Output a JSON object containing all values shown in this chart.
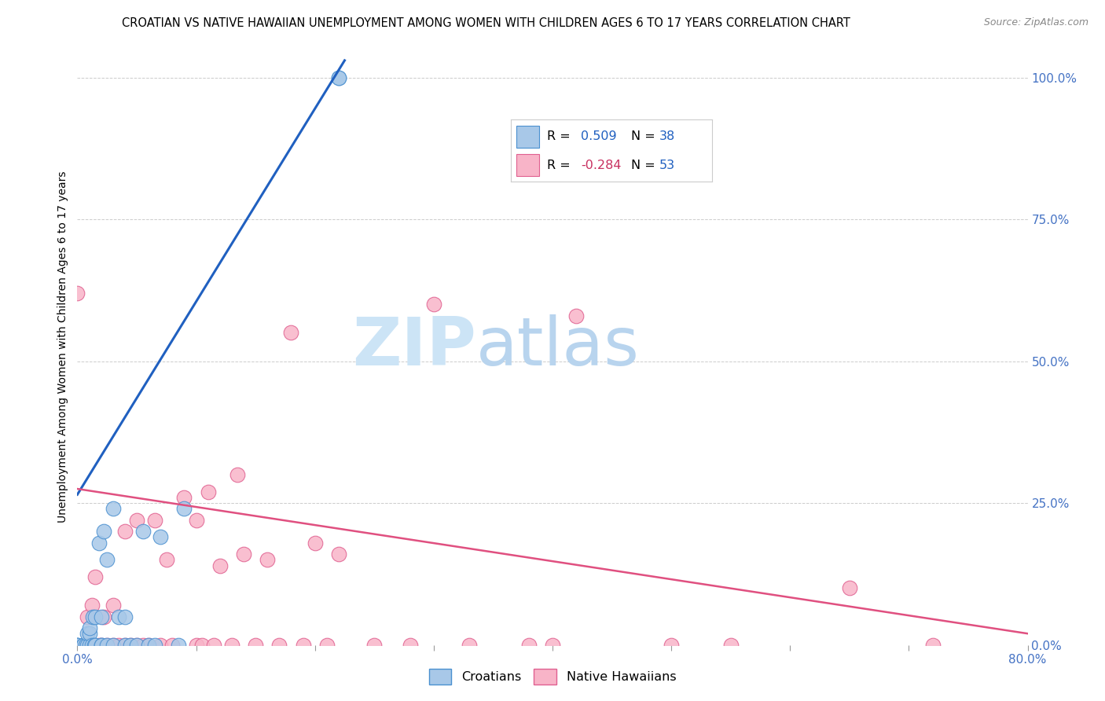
{
  "title": "CROATIAN VS NATIVE HAWAIIAN UNEMPLOYMENT AMONG WOMEN WITH CHILDREN AGES 6 TO 17 YEARS CORRELATION CHART",
  "source": "Source: ZipAtlas.com",
  "ylabel": "Unemployment Among Women with Children Ages 6 to 17 years",
  "xlim": [
    0.0,
    0.8
  ],
  "ylim": [
    0.0,
    1.05
  ],
  "xtick_positions": [
    0.0,
    0.1,
    0.2,
    0.3,
    0.4,
    0.5,
    0.6,
    0.7,
    0.8
  ],
  "xticklabels": [
    "0.0%",
    "",
    "",
    "",
    "",
    "",
    "",
    "",
    "80.0%"
  ],
  "ytick_positions": [
    0.0,
    0.25,
    0.5,
    0.75,
    1.0
  ],
  "yticklabels_right": [
    "0.0%",
    "25.0%",
    "50.0%",
    "75.0%",
    "100.0%"
  ],
  "croatian_R": "0.509",
  "croatian_N": "38",
  "hawaiian_R": "-0.284",
  "hawaiian_N": "53",
  "blue_scatter_color": "#a8c8e8",
  "blue_edge_color": "#4a90d0",
  "blue_line_color": "#2060c0",
  "pink_scatter_color": "#f8b4c8",
  "pink_edge_color": "#e06090",
  "pink_line_color": "#e05080",
  "title_fontsize": 10.5,
  "source_fontsize": 9,
  "tick_label_color": "#4472c4",
  "ylabel_fontsize": 10,
  "watermark_zip_color": "#cce4f6",
  "watermark_atlas_color": "#b8d4ee",
  "grid_color": "#cccccc",
  "legend_border_color": "#cccccc",
  "croatian_x": [
    0.0,
    0.0,
    0.0,
    0.005,
    0.005,
    0.007,
    0.008,
    0.008,
    0.01,
    0.01,
    0.01,
    0.012,
    0.013,
    0.014,
    0.015,
    0.015,
    0.018,
    0.02,
    0.02,
    0.02,
    0.022,
    0.025,
    0.025,
    0.03,
    0.03,
    0.035,
    0.04,
    0.04,
    0.045,
    0.05,
    0.055,
    0.06,
    0.065,
    0.07,
    0.085,
    0.09,
    0.22,
    0.22
  ],
  "croatian_y": [
    0.0,
    0.0,
    0.0,
    0.0,
    0.0,
    0.0,
    0.0,
    0.02,
    0.0,
    0.02,
    0.03,
    0.0,
    0.05,
    0.0,
    0.0,
    0.05,
    0.18,
    0.0,
    0.0,
    0.05,
    0.2,
    0.0,
    0.15,
    0.0,
    0.24,
    0.05,
    0.0,
    0.05,
    0.0,
    0.0,
    0.2,
    0.0,
    0.0,
    0.19,
    0.0,
    0.24,
    1.0,
    1.0
  ],
  "hawaiian_x": [
    0.0,
    0.005,
    0.008,
    0.01,
    0.012,
    0.015,
    0.018,
    0.02,
    0.022,
    0.025,
    0.03,
    0.03,
    0.035,
    0.04,
    0.04,
    0.045,
    0.05,
    0.05,
    0.055,
    0.06,
    0.065,
    0.07,
    0.075,
    0.08,
    0.09,
    0.1,
    0.1,
    0.105,
    0.11,
    0.115,
    0.12,
    0.13,
    0.135,
    0.14,
    0.15,
    0.16,
    0.17,
    0.18,
    0.19,
    0.2,
    0.21,
    0.22,
    0.25,
    0.28,
    0.3,
    0.33,
    0.38,
    0.4,
    0.42,
    0.5,
    0.55,
    0.65,
    0.72
  ],
  "hawaiian_y": [
    0.62,
    0.0,
    0.05,
    0.0,
    0.07,
    0.12,
    0.0,
    0.0,
    0.05,
    0.0,
    0.0,
    0.07,
    0.0,
    0.0,
    0.2,
    0.0,
    0.0,
    0.22,
    0.0,
    0.0,
    0.22,
    0.0,
    0.15,
    0.0,
    0.26,
    0.0,
    0.22,
    0.0,
    0.27,
    0.0,
    0.14,
    0.0,
    0.3,
    0.16,
    0.0,
    0.15,
    0.0,
    0.55,
    0.0,
    0.18,
    0.0,
    0.16,
    0.0,
    0.0,
    0.6,
    0.0,
    0.0,
    0.0,
    0.58,
    0.0,
    0.0,
    0.1,
    0.0
  ],
  "blue_trendline_x0": 0.0,
  "blue_trendline_x1": 0.225,
  "blue_trendline_y0": 0.265,
  "blue_trendline_y1": 1.03,
  "pink_trendline_x0": 0.0,
  "pink_trendline_x1": 0.8,
  "pink_trendline_y0": 0.275,
  "pink_trendline_y1": 0.02
}
